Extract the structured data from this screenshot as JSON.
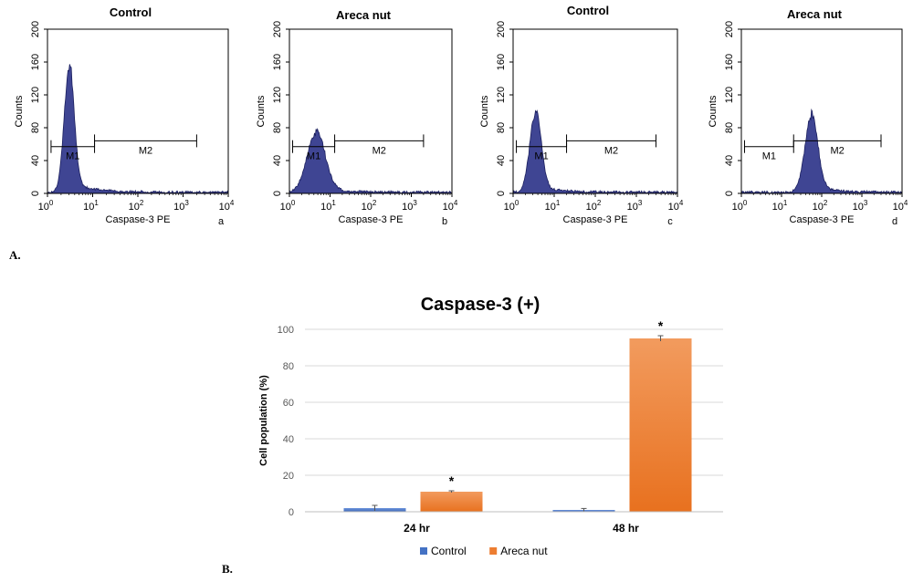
{
  "figure": {
    "label_a": "A.",
    "label_b": "B."
  },
  "chart_data": [
    {
      "type": "histogram",
      "title": "Control",
      "panel_letter": "a",
      "xlabel": "Caspase-3 PE",
      "ylabel": "Counts",
      "xscale": "log",
      "xlim": [
        1,
        10000
      ],
      "ylim": [
        0,
        200
      ],
      "y_ticks": [
        "0",
        "40",
        "80",
        "120",
        "160",
        "200"
      ],
      "x_tick_exponents": [
        "0",
        "1",
        "2",
        "3",
        "4"
      ],
      "peak": {
        "center": 3,
        "height": 150,
        "spread": 0.11
      },
      "markers": [
        {
          "name": "M1",
          "from": 1.2,
          "to": 11,
          "level": 57
        },
        {
          "name": "M2",
          "from": 11,
          "to": 2000,
          "level": 64
        }
      ]
    },
    {
      "type": "histogram",
      "title": "Areca nut",
      "panel_letter": "b",
      "xlabel": "Caspase-3 PE",
      "ylabel": "Counts",
      "xscale": "log",
      "xlim": [
        1,
        10000
      ],
      "ylim": [
        0,
        200
      ],
      "y_ticks": [
        "0",
        "40",
        "80",
        "120",
        "160",
        "200"
      ],
      "x_tick_exponents": [
        "0",
        "1",
        "2",
        "3",
        "4"
      ],
      "peak": {
        "center": 4.5,
        "height": 72,
        "spread": 0.22
      },
      "markers": [
        {
          "name": "M1",
          "from": 1.2,
          "to": 13,
          "level": 57
        },
        {
          "name": "M2",
          "from": 13,
          "to": 2000,
          "level": 64
        }
      ]
    },
    {
      "type": "histogram",
      "title": "Control",
      "panel_letter": "c",
      "xlabel": "Caspase-3 PE",
      "ylabel": "Counts",
      "xscale": "log",
      "xlim": [
        1,
        10000
      ],
      "ylim": [
        0,
        200
      ],
      "y_ticks": [
        "0",
        "40",
        "80",
        "120",
        "160",
        "200"
      ],
      "x_tick_exponents": [
        "0",
        "1",
        "2",
        "3",
        "4"
      ],
      "peak": {
        "center": 3.5,
        "height": 95,
        "spread": 0.14
      },
      "markers": [
        {
          "name": "M1",
          "from": 1.2,
          "to": 20,
          "level": 57
        },
        {
          "name": "M2",
          "from": 20,
          "to": 3000,
          "level": 64
        }
      ]
    },
    {
      "type": "histogram",
      "title": "Areca nut",
      "panel_letter": "d",
      "xlabel": "Caspase-3 PE",
      "ylabel": "Counts",
      "xscale": "log",
      "xlim": [
        1,
        10000
      ],
      "ylim": [
        0,
        200
      ],
      "y_ticks": [
        "0",
        "40",
        "80",
        "120",
        "160",
        "200"
      ],
      "x_tick_exponents": [
        "0",
        "1",
        "2",
        "3",
        "4"
      ],
      "peak": {
        "center": 55,
        "height": 90,
        "spread": 0.16
      },
      "markers": [
        {
          "name": "M1",
          "from": 1.2,
          "to": 20,
          "level": 57
        },
        {
          "name": "M2",
          "from": 20,
          "to": 3000,
          "level": 64
        }
      ]
    },
    {
      "type": "bar",
      "title": "Caspase-3 (+)",
      "ylabel": "Cell population (%)",
      "xlabel": "",
      "categories": [
        "24 hr",
        "48 hr"
      ],
      "series": [
        {
          "name": "Control",
          "color": "#4472C4",
          "values": [
            2,
            1
          ],
          "errors": [
            1.5,
            0.8
          ]
        },
        {
          "name": "Areca nut",
          "color": "#ED7D31",
          "values": [
            11,
            95
          ],
          "errors": [
            0.5,
            1.5
          ]
        }
      ],
      "significance": [
        [
          "",
          ""
        ],
        [
          "*",
          "*"
        ]
      ],
      "y_ticks": [
        "0",
        "20",
        "40",
        "60",
        "80",
        "100"
      ],
      "ylim": [
        0,
        100
      ],
      "legend": "bottom"
    }
  ]
}
